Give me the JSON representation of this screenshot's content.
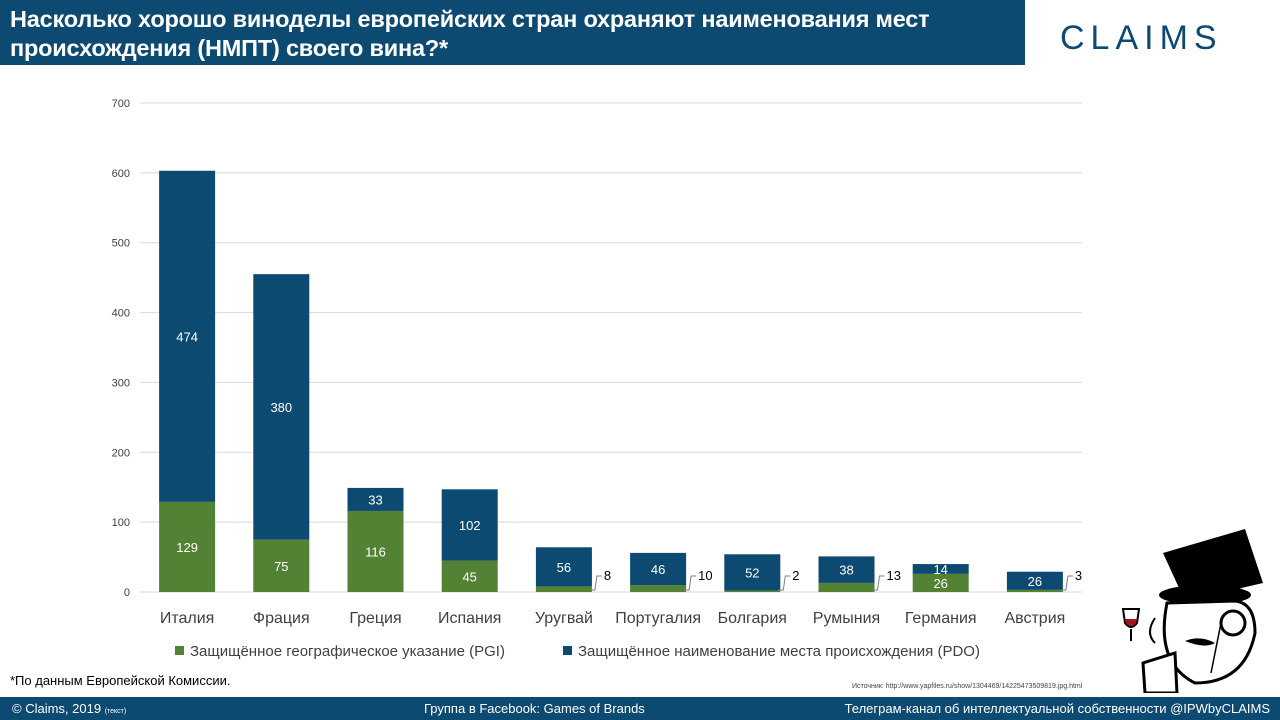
{
  "title": "Насколько хорошо виноделы европейских стран охраняют наименования мест происхождения (НМПТ) своего вина?*",
  "logo": "CLAIMS",
  "footnote": "*По данным Европейской Комиссии.",
  "source": "Источник:  http://www.yapfiles.ru/show/1304469/1422547350981​9.jpg.html",
  "footer": {
    "copyright": "© Claims, 2019",
    "copyright_note": "(текст)",
    "facebook": "Группа в Facebook: Games of Brands",
    "telegram": "Телеграм-канал  об интеллектуальной  собственности  @IPWbyCLAIMS"
  },
  "colors": {
    "pgi": "#548235",
    "pdo": "#0d4a72",
    "header": "#0d4a72"
  },
  "chart_data": {
    "type": "bar",
    "stacked": true,
    "categories": [
      "Италия",
      "Фрация",
      "Греция",
      "Испания",
      "Уругвай",
      "Португалия",
      "Болгария",
      "Румыния",
      "Германия",
      "Австрия"
    ],
    "series": [
      {
        "name": "Защищённое географическое указание (PGI)",
        "color": "#548235",
        "values": [
          129,
          75,
          116,
          45,
          8,
          10,
          2,
          13,
          26,
          3
        ]
      },
      {
        "name": "Защищённое наименование места происхождения (PDO)",
        "color": "#0d4a72",
        "values": [
          474,
          380,
          33,
          102,
          56,
          46,
          52,
          38,
          14,
          26
        ]
      }
    ],
    "ylim": [
      0,
      700
    ],
    "yticks": [
      0,
      100,
      200,
      300,
      400,
      500,
      600,
      700
    ],
    "grid": true,
    "legend_position": "bottom"
  }
}
